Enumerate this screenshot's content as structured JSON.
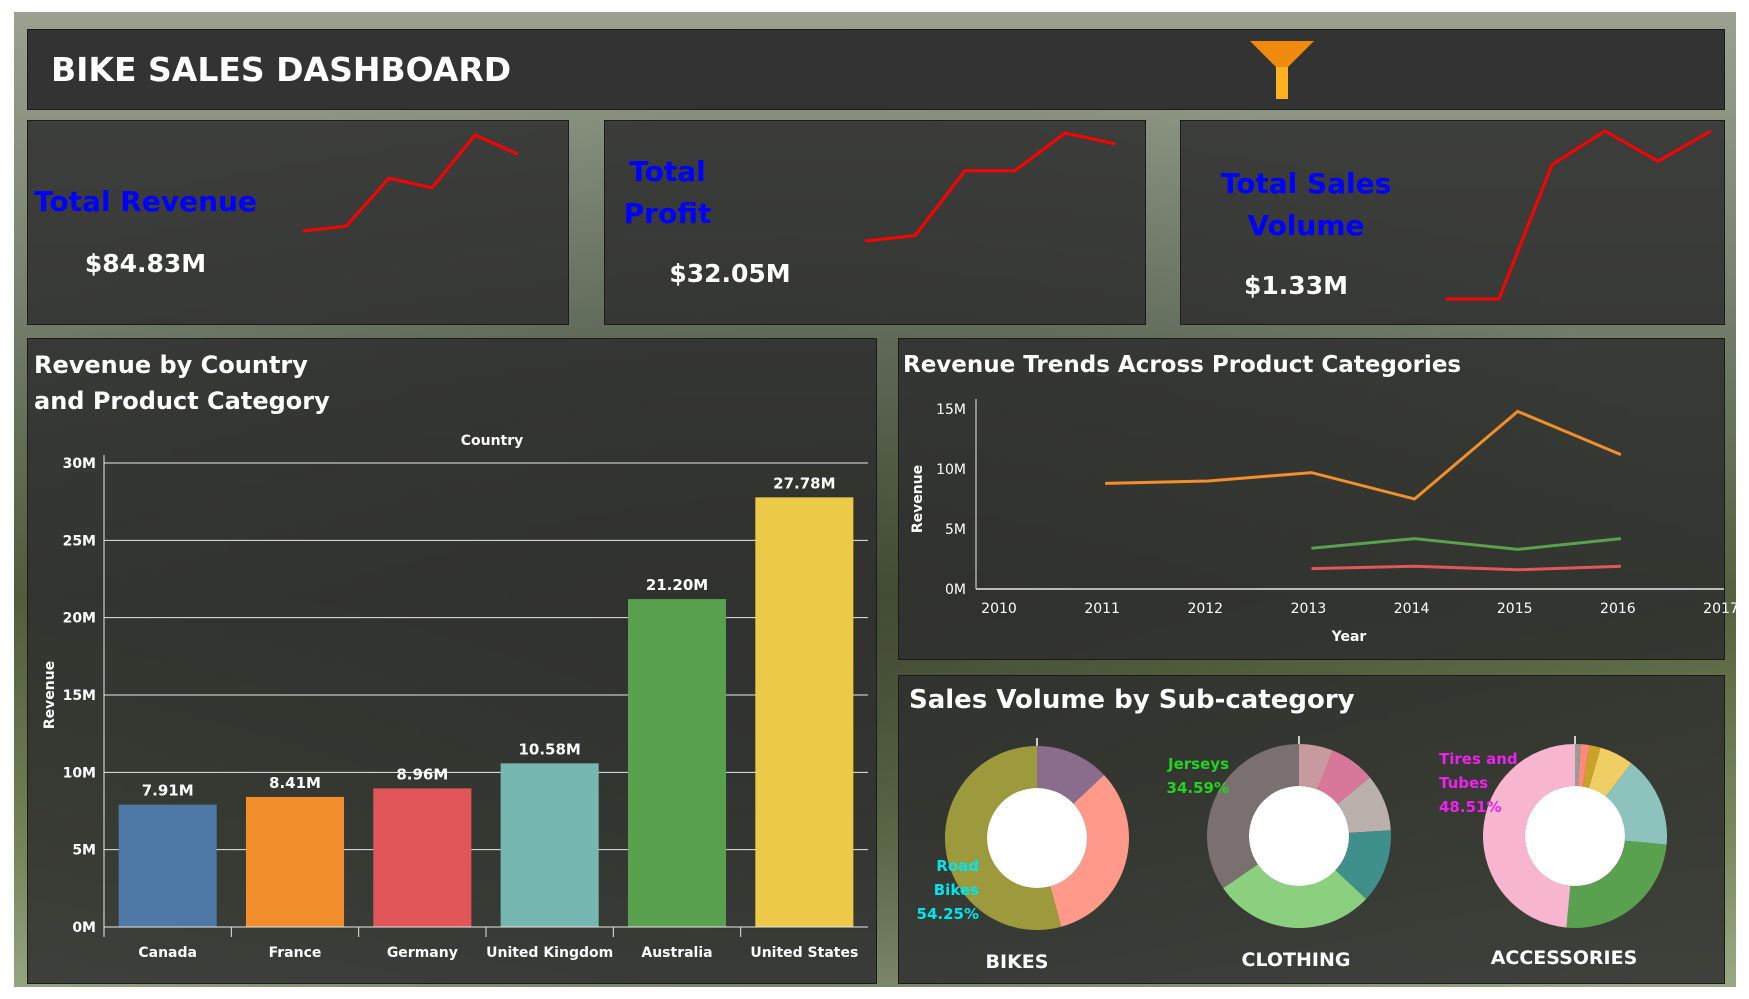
{
  "header": {
    "title": "BIKE SALES DASHBOARD",
    "filter_icon": "funnel-icon",
    "filter_color": "#f08a0c"
  },
  "kpis": [
    {
      "label": "Total Revenue",
      "value": "$84.83M",
      "trend": [
        0.0,
        0.05,
        0.55,
        0.45,
        1.0,
        0.8
      ]
    },
    {
      "label": "Total Profit",
      "value": "$32.05M",
      "trend": [
        0.0,
        0.05,
        0.65,
        0.65,
        1.0,
        0.9
      ]
    },
    {
      "label": "Total Sales Volume",
      "value": "$1.33M",
      "trend": [
        0.0,
        0.0,
        0.8,
        1.0,
        0.82,
        1.0
      ]
    }
  ],
  "colors": {
    "kpi_label": "#0000ff",
    "spark": "#ff0000"
  },
  "chart_data": [
    {
      "type": "bar",
      "title": "Revenue by Country and Product Category",
      "xlabel": "Country",
      "ylabel": "Revenue",
      "ylim": [
        0,
        30
      ],
      "yticks": [
        "0M",
        "5M",
        "10M",
        "15M",
        "20M",
        "25M",
        "30M"
      ],
      "categories": [
        "Canada",
        "France",
        "Germany",
        "United Kingdom",
        "Australia",
        "United States"
      ],
      "values": [
        7.91,
        8.41,
        8.96,
        10.58,
        21.2,
        27.78
      ],
      "value_labels": [
        "7.91M",
        "8.41M",
        "8.96M",
        "10.58M",
        "21.20M",
        "27.78M"
      ],
      "colors": [
        "#4e79a7",
        "#f28e2b",
        "#e15759",
        "#76b7b2",
        "#59a14f",
        "#edc948"
      ],
      "grid": true
    },
    {
      "type": "line",
      "title": "Revenue Trends Across Product Categories",
      "xlabel": "Year",
      "ylabel": "Revenue",
      "ylim": [
        0,
        15
      ],
      "xlim": [
        2010,
        2017
      ],
      "yticks": [
        "0M",
        "5M",
        "10M",
        "15M"
      ],
      "xticks": [
        "2010",
        "2011",
        "2012",
        "2013",
        "2014",
        "2015",
        "2016",
        "2017"
      ],
      "series": [
        {
          "color": "#f28e2b",
          "x": [
            2011,
            2012,
            2013,
            2014,
            2015,
            2016
          ],
          "values": [
            8.8,
            9.0,
            9.7,
            7.5,
            14.8,
            11.2
          ]
        },
        {
          "color": "#59a14f",
          "x": [
            2013,
            2014,
            2015,
            2016
          ],
          "values": [
            3.4,
            4.2,
            3.3,
            4.2
          ]
        },
        {
          "color": "#e15759",
          "x": [
            2013,
            2014,
            2015,
            2016
          ],
          "values": [
            1.7,
            1.9,
            1.6,
            1.9
          ]
        }
      ]
    },
    {
      "type": "pie",
      "title": "Sales Volume by Sub-category",
      "groups": [
        {
          "name": "BIKES",
          "callout": [
            "Road",
            "Bikes",
            "54.25%"
          ],
          "callout_color": "#00e5ee",
          "slices": [
            {
              "value": 54.25,
              "color": "#9c9a3c"
            },
            {
              "value": 13.0,
              "color": "#8a6d8d"
            },
            {
              "value": 32.75,
              "color": "#ff9a8a"
            }
          ]
        },
        {
          "name": "CLOTHING",
          "callout": [
            "Jerseys",
            "34.59%"
          ],
          "callout_color": "#22d422",
          "slices": [
            {
              "value": 34.59,
              "color": "#7a7070"
            },
            {
              "value": 6.0,
              "color": "#c89aa0"
            },
            {
              "value": 8.0,
              "color": "#d9779a"
            },
            {
              "value": 10.0,
              "color": "#bab0ac"
            },
            {
              "value": 13.0,
              "color": "#3f8f8a"
            },
            {
              "value": 28.41,
              "color": "#8bd07f"
            }
          ]
        },
        {
          "name": "ACCESSORIES",
          "callout": [
            "Tires and",
            "Tubes",
            "48.51%"
          ],
          "callout_color": "#ee22ee",
          "slices": [
            {
              "value": 48.51,
              "color": "#f7b5cf"
            },
            {
              "value": 1.0,
              "color": "#9b9b9b"
            },
            {
              "value": 1.5,
              "color": "#ff8a7a"
            },
            {
              "value": 2.0,
              "color": "#c9a227"
            },
            {
              "value": 6.0,
              "color": "#f1ce63"
            },
            {
              "value": 16.0,
              "color": "#8cc4bd"
            },
            {
              "value": 24.99,
              "color": "#59a14f"
            }
          ]
        }
      ]
    }
  ]
}
